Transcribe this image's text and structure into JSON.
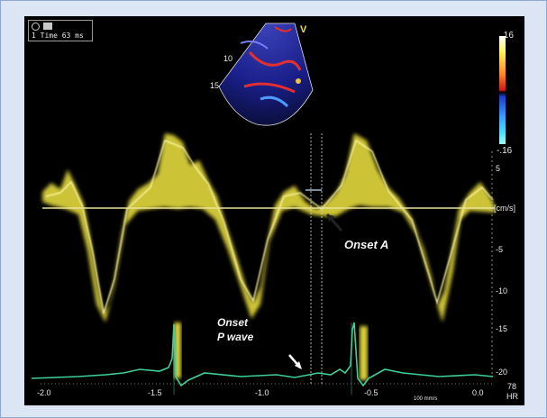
{
  "header": {
    "info_text": "1 Time 63 ms"
  },
  "sector": {
    "tag": "V",
    "depth_labels": [
      "10",
      "15"
    ]
  },
  "color_scale": {
    "top": ".16",
    "bottom": "-.16"
  },
  "velocity_axis": {
    "ticks": [
      "5",
      "[cm/s]",
      "-5",
      "-10",
      "-15",
      "-20"
    ]
  },
  "time_axis": {
    "ticks": [
      "-2.0",
      "-1.5",
      "-1.0",
      "-0.5",
      "0.0"
    ],
    "sweep_speed": "100 mm/s",
    "hr_value": "78",
    "hr_label": "HR"
  },
  "annotations": {
    "onset_a": "Onset A",
    "onset_p_line1": "Onset",
    "onset_p_line2": "P wave"
  },
  "colors": {
    "doppler": "#f3ec55",
    "baseline": "#e9e39a",
    "ecg": "#3fcf99",
    "background": "#000000",
    "frame": "#dce5f3"
  }
}
